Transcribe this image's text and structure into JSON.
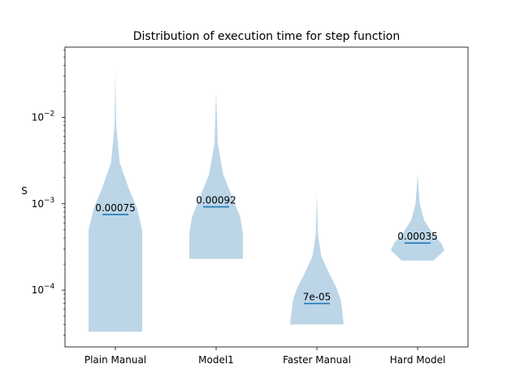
{
  "chart_data": {
    "type": "violin",
    "title": "Distribution of execution time for step function",
    "xlabel": "",
    "ylabel": "S",
    "yscale": "log",
    "ylim": [
      2.2e-05,
      0.065
    ],
    "y_major_ticks": [
      0.0001,
      0.001,
      0.01
    ],
    "y_tick_labels": [
      {
        "base": "10",
        "exp": "−4"
      },
      {
        "base": "10",
        "exp": "−3"
      },
      {
        "base": "10",
        "exp": "−2"
      }
    ],
    "categories": [
      "Plain Manual",
      "Model1",
      "Faster Manual",
      "Hard Model"
    ],
    "series_color": "#1f77b4",
    "fill_color": "#bcd6e8",
    "violins": [
      {
        "name": "Plain Manual",
        "median": 0.00075,
        "median_label": "0.00075",
        "profile": [
          [
            3.3e-05,
            0.5
          ],
          [
            0.0005,
            0.5
          ],
          [
            0.0009,
            0.4
          ],
          [
            0.0015,
            0.25
          ],
          [
            0.003,
            0.08
          ],
          [
            0.008,
            0.015
          ],
          [
            0.035,
            0.0
          ]
        ]
      },
      {
        "name": "Model1",
        "median": 0.00092,
        "median_label": "0.00092",
        "profile": [
          [
            0.00023,
            0.5
          ],
          [
            0.00045,
            0.5
          ],
          [
            0.0007,
            0.45
          ],
          [
            0.0012,
            0.3
          ],
          [
            0.0022,
            0.13
          ],
          [
            0.005,
            0.03
          ],
          [
            0.02,
            0.0
          ]
        ]
      },
      {
        "name": "Faster Manual",
        "median": 7e-05,
        "median_label": "7e-05",
        "profile": [
          [
            4e-05,
            0.5
          ],
          [
            7.5e-05,
            0.45
          ],
          [
            0.000105,
            0.37
          ],
          [
            0.00017,
            0.2
          ],
          [
            0.00025,
            0.08
          ],
          [
            0.00045,
            0.02
          ],
          [
            0.0013,
            0.0
          ]
        ]
      },
      {
        "name": "Hard Model",
        "median": 0.00035,
        "median_label": "0.00035",
        "profile": [
          [
            0.00022,
            0.3
          ],
          [
            0.00029,
            0.5
          ],
          [
            0.00035,
            0.44
          ],
          [
            0.00045,
            0.28
          ],
          [
            0.00065,
            0.12
          ],
          [
            0.001,
            0.04
          ],
          [
            0.0022,
            0.0
          ]
        ]
      }
    ]
  }
}
